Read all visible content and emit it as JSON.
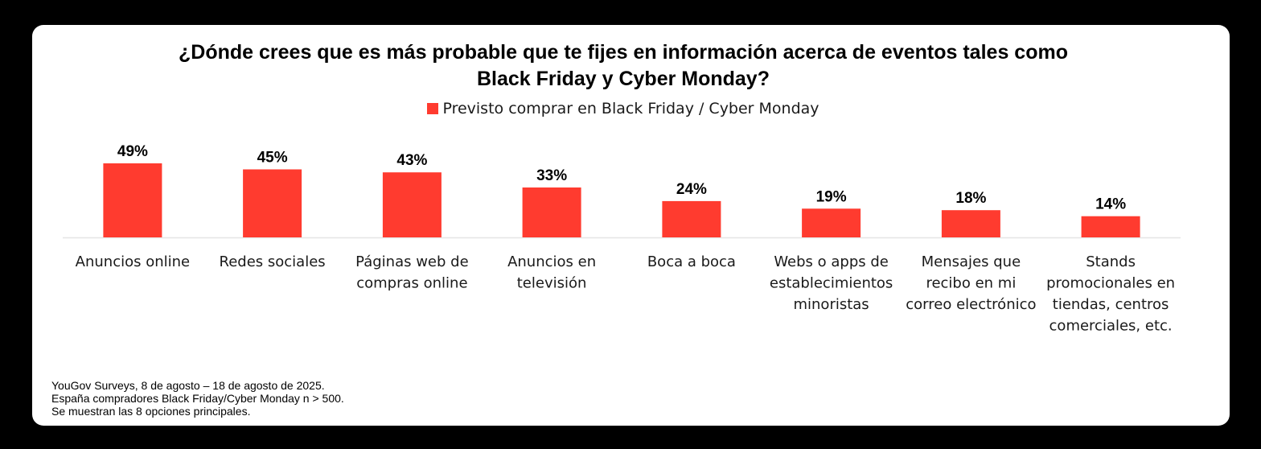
{
  "colors": {
    "bar": "#ff3b2f",
    "axis": "#e6e6e6"
  },
  "chart_data": {
    "type": "bar",
    "title_lines": [
      "¿Dónde crees que es más probable que te fijes en información acerca de eventos tales como",
      "Black Friday y Cyber Monday?"
    ],
    "legend": [
      "Previsto comprar en Black Friday / Cyber Monday"
    ],
    "categories": [
      [
        "Anuncios online"
      ],
      [
        "Redes sociales"
      ],
      [
        "Páginas web de",
        "compras online"
      ],
      [
        "Anuncios en",
        "televisión"
      ],
      [
        "Boca a boca"
      ],
      [
        "Webs o apps de",
        "establecimientos",
        "minoristas"
      ],
      [
        "Mensajes que",
        "recibo en mi",
        "correo electrónico"
      ],
      [
        "Stands",
        "promocionales en",
        "tiendas, centros",
        "comerciales, etc."
      ]
    ],
    "series": [
      {
        "name": "Previsto comprar en Black Friday / Cyber Monday",
        "values": [
          49,
          45,
          43,
          33,
          24,
          19,
          18,
          14
        ],
        "labels": [
          "49%",
          "45%",
          "43%",
          "33%",
          "24%",
          "19%",
          "18%",
          "14%"
        ]
      }
    ],
    "ylim": [
      0,
      100
    ],
    "xlabel": "",
    "ylabel": "",
    "grid": false
  },
  "footnote": {
    "lines": [
      "YouGov Surveys, 8 de agosto – 18 de agosto de 2025.",
      "España compradores Black Friday/Cyber Monday n > 500.",
      "Se muestran las 8 opciones principales."
    ]
  }
}
